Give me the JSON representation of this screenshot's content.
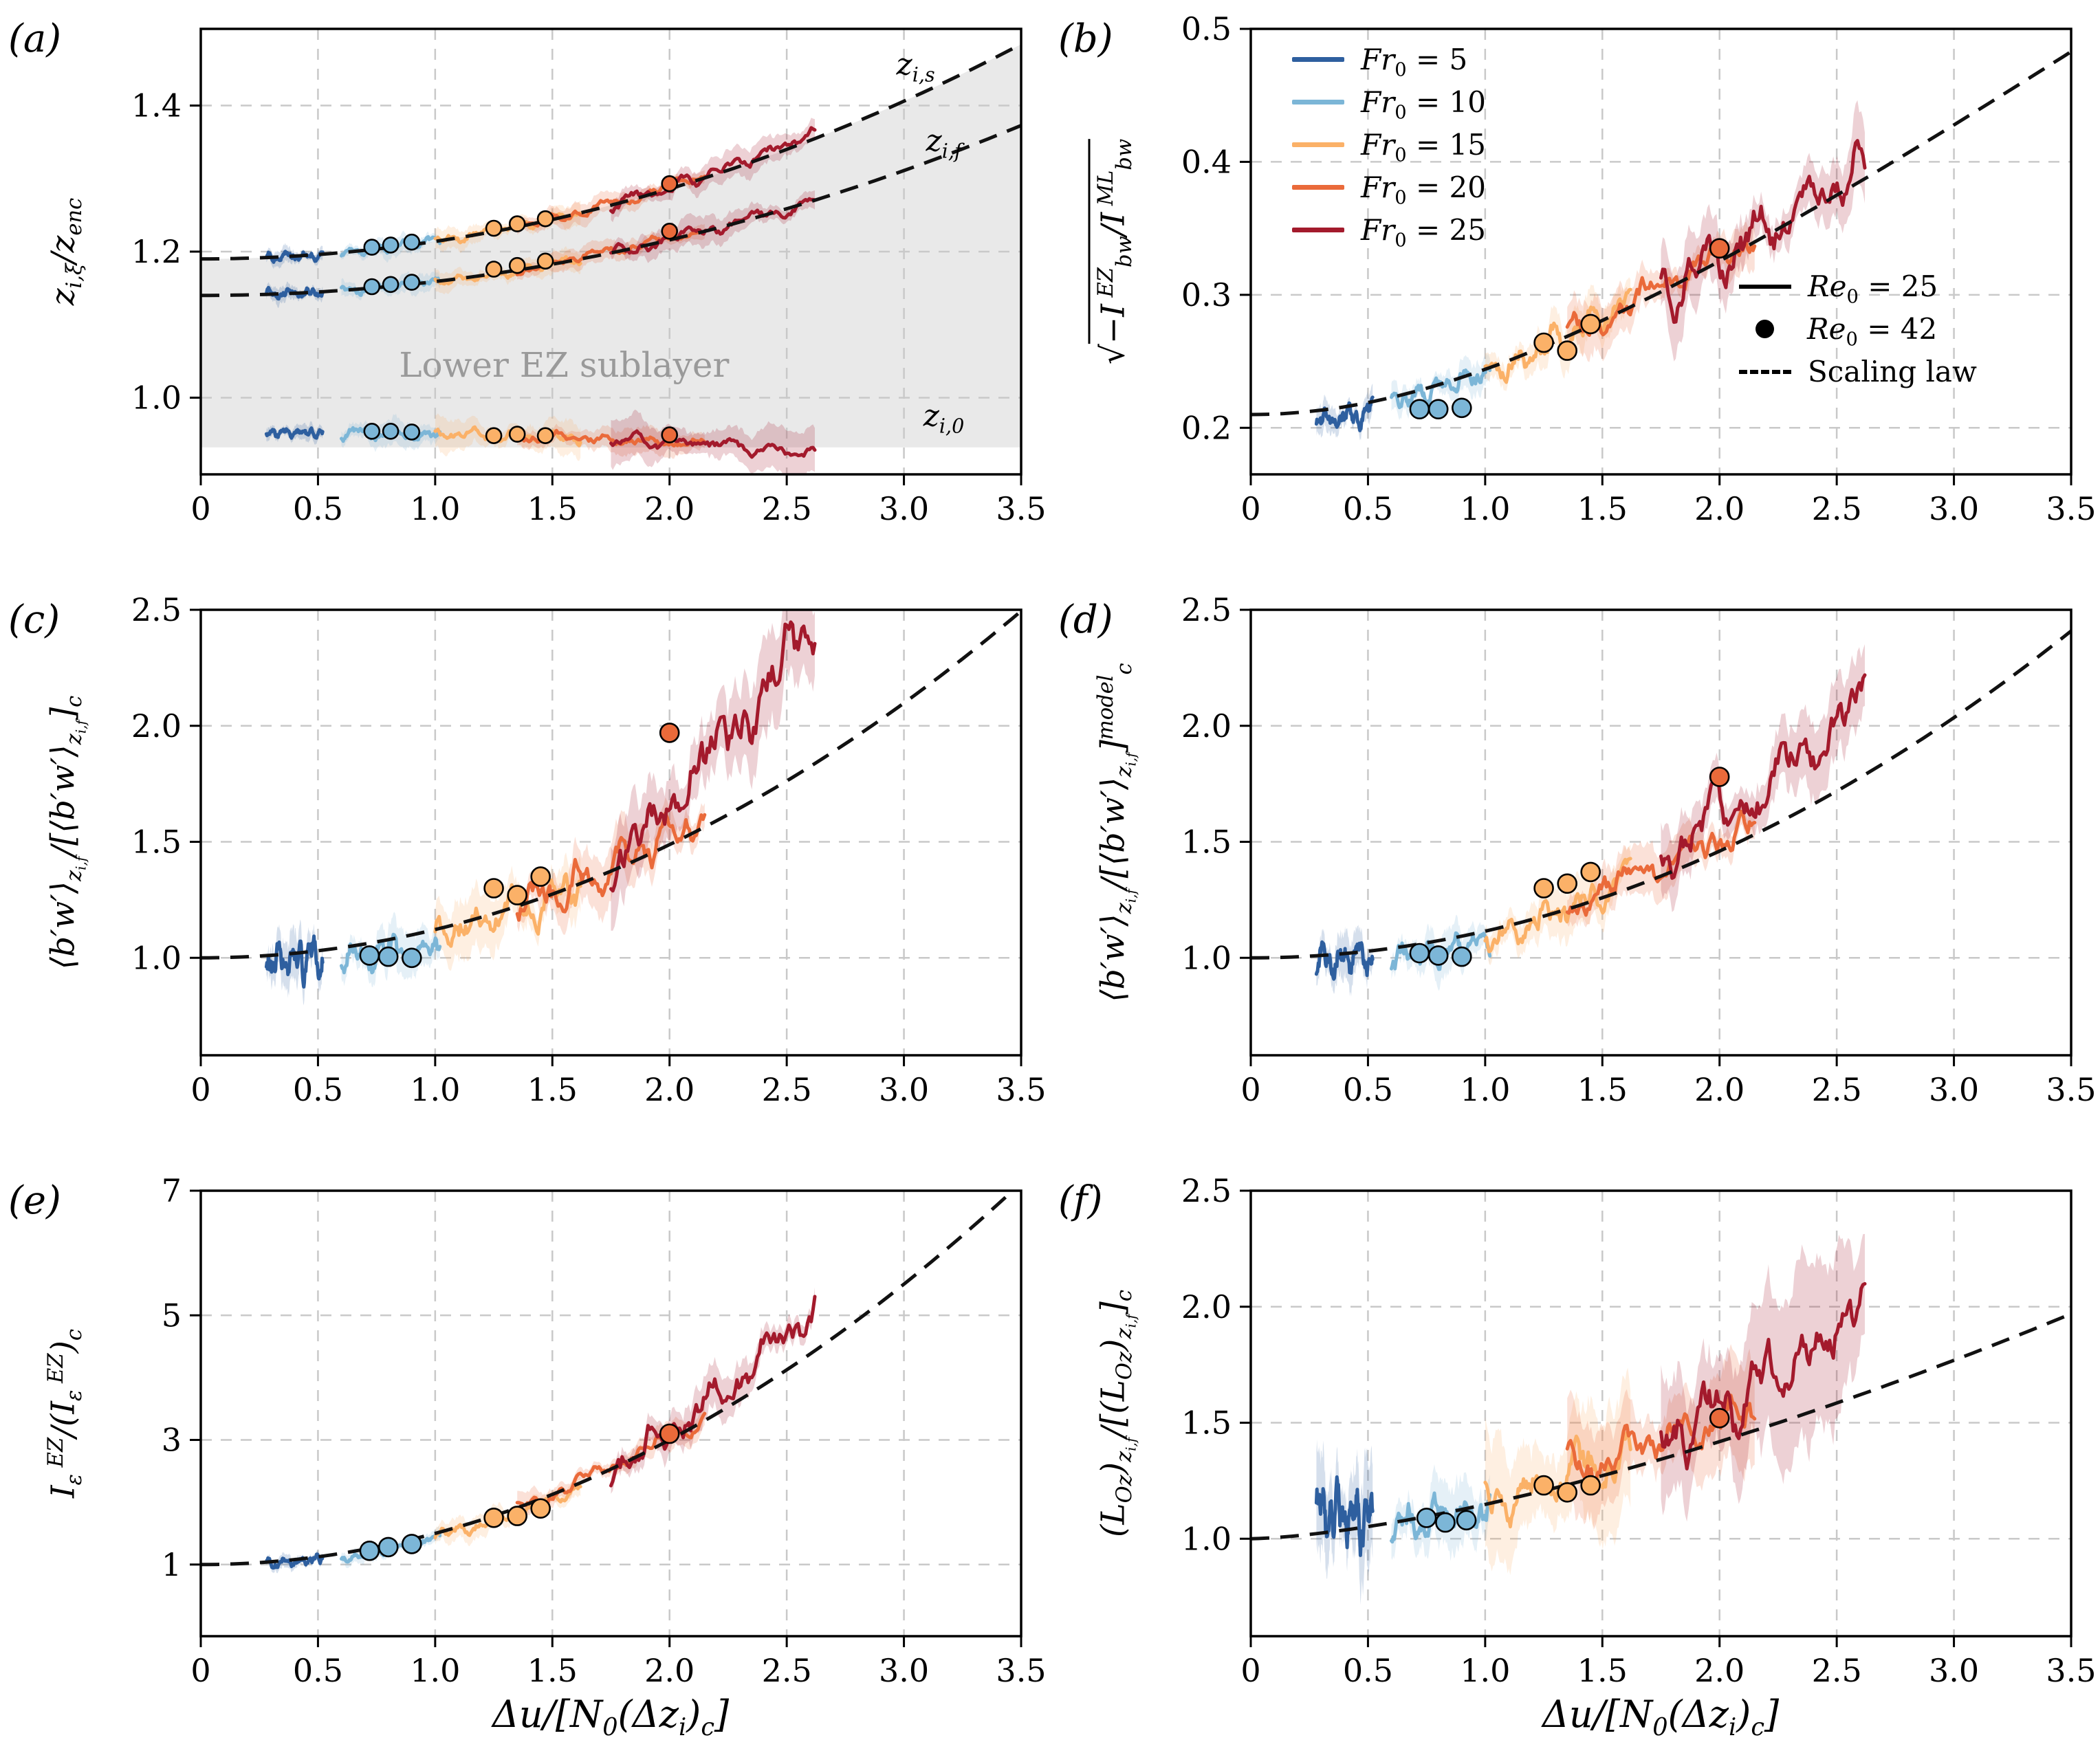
{
  "chart_data": {
    "type": "line",
    "xlabel_html": "Δ<i>u</i>/[<i>N</i><sub>0</sub>(Δ<i>z<sub>i</sub></i>)<sub><i>c</i></sub>]",
    "xlim": [
      0,
      3.5
    ],
    "xticks": {
      "values": [
        0,
        0.5,
        1,
        1.5,
        2,
        2.5,
        3,
        3.5
      ],
      "labels": [
        "0",
        "0.5",
        "1.0",
        "1.5",
        "2.0",
        "2.5",
        "3.0",
        "3.5"
      ]
    },
    "colors": {
      "fr5": "#2e5f9f",
      "fr10": "#7cb6d7",
      "fr15": "#fbb168",
      "fr20": "#ea6a3a",
      "fr25": "#a31a2c",
      "grid": "#c9c9c9",
      "shade": "#e9e9e9",
      "annotation": "#9a9a9a",
      "law": "#111111"
    },
    "legend": {
      "fr": [
        {
          "key": "fr5",
          "label_html": "<i>Fr</i><sub>0</sub> = 5"
        },
        {
          "key": "fr10",
          "label_html": "<i>Fr</i><sub>0</sub> = 10"
        },
        {
          "key": "fr15",
          "label_html": "<i>Fr</i><sub>0</sub> = 15"
        },
        {
          "key": "fr20",
          "label_html": "<i>Fr</i><sub>0</sub> = 20"
        },
        {
          "key": "fr25",
          "label_html": "<i>Fr</i><sub>0</sub> = 25"
        }
      ],
      "style": [
        {
          "type": "line",
          "label_html": "<i>Re</i><sub>0</sub> = 25"
        },
        {
          "type": "dot",
          "label_html": "<i>Re</i><sub>0</sub> = 42"
        },
        {
          "type": "dash",
          "label_html": "Scaling law"
        }
      ]
    },
    "panels": [
      {
        "id": "a",
        "tag": "(a)",
        "ylabel_html": "<i>z</i><sub><i>i</i>,<i>ξ</i></sub>/<i>z<sub>enc</sub></i>",
        "ylim": [
          0.895,
          1.505
        ],
        "yticks": {
          "values": [
            1.0,
            1.2,
            1.4
          ],
          "labels": [
            "1.0",
            "1.2",
            "1.4"
          ]
        },
        "shade": {
          "y_bottom": 0.932,
          "label": "Lower EZ sublayer",
          "label_x": 1.55,
          "label_y": 1.045
        },
        "curves": [
          {
            "name": "zis",
            "dashed": true,
            "law": {
              "c0": 1.19,
              "c1": 0.024
            },
            "label_html": "<i>z</i><sub><i>i</i>,<i>s</i></sub>",
            "label_x": 3.05,
            "label_y": 1.456,
            "series": [
              {
                "fr": "fr5",
                "x0": 0.28,
                "x1": 0.52,
                "off0": 0,
                "off1": 0,
                "wig": 0.004,
                "band": 0.012
              },
              {
                "fr": "fr10",
                "x0": 0.6,
                "x1": 1.02,
                "off0": 0,
                "off1": 0,
                "wig": 0.004,
                "band": 0.014
              },
              {
                "fr": "fr15",
                "x0": 1.0,
                "x1": 1.62,
                "off0": 0,
                "off1": 0,
                "wig": 0.0045,
                "band": 0.016
              },
              {
                "fr": "fr20",
                "x0": 1.35,
                "x1": 2.15,
                "off0": 0,
                "off1": 0.004,
                "wig": 0.0045,
                "band": 0.016
              },
              {
                "fr": "fr25",
                "x0": 1.75,
                "x1": 2.62,
                "off0": 0,
                "off1": 0.006,
                "wig": 0.006,
                "band": 0.022
              }
            ]
          },
          {
            "name": "zif",
            "dashed": true,
            "law": {
              "c0": 1.14,
              "c1": 0.019
            },
            "label_html": "<i>z</i><sub><i>i</i>,<i>f</i></sub>",
            "label_x": 3.17,
            "label_y": 1.352,
            "series": [
              {
                "fr": "fr5",
                "x0": 0.28,
                "x1": 0.52,
                "off0": 0,
                "off1": 0,
                "wig": 0.004,
                "band": 0.012
              },
              {
                "fr": "fr10",
                "x0": 0.6,
                "x1": 1.02,
                "off0": 0,
                "off1": 0,
                "wig": 0.004,
                "band": 0.014
              },
              {
                "fr": "fr15",
                "x0": 1.0,
                "x1": 1.62,
                "off0": 0,
                "off1": 0,
                "wig": 0.0045,
                "band": 0.016
              },
              {
                "fr": "fr20",
                "x0": 1.35,
                "x1": 2.15,
                "off0": 0,
                "off1": 0.004,
                "wig": 0.0045,
                "band": 0.016
              },
              {
                "fr": "fr25",
                "x0": 1.75,
                "x1": 2.62,
                "off0": 0,
                "off1": 0,
                "wig": 0.006,
                "band": 0.022
              }
            ]
          },
          {
            "name": "zi0",
            "dashed": false,
            "law": {
              "c0": 0.952,
              "c1": -0.003
            },
            "label_html": "<i>z</i><sub><i>i</i>,0</sub>",
            "label_x": 3.17,
            "label_y": 0.975,
            "series": [
              {
                "fr": "fr5",
                "x0": 0.28,
                "x1": 0.52,
                "off0": 0,
                "off1": 0,
                "wig": 0.004,
                "band": 0.012
              },
              {
                "fr": "fr10",
                "x0": 0.6,
                "x1": 1.02,
                "off0": 0,
                "off1": 0,
                "wig": 0.005,
                "band": 0.02
              },
              {
                "fr": "fr15",
                "x0": 1.0,
                "x1": 1.62,
                "off0": 0,
                "off1": 0,
                "wig": 0.005,
                "band": 0.025
              },
              {
                "fr": "fr20",
                "x0": 1.35,
                "x1": 2.15,
                "off0": 0,
                "off1": 0,
                "wig": 0.005,
                "band": 0.02
              },
              {
                "fr": "fr25",
                "x0": 1.75,
                "x1": 2.62,
                "off0": 0,
                "off1": -0.006,
                "wig": 0.006,
                "band": 0.035
              }
            ]
          }
        ],
        "markers": [
          [
            0.73,
            1.206,
            "fr10"
          ],
          [
            0.81,
            1.209,
            "fr10"
          ],
          [
            0.9,
            1.213,
            "fr10"
          ],
          [
            1.25,
            1.232,
            "fr15"
          ],
          [
            1.35,
            1.238,
            "fr15"
          ],
          [
            1.47,
            1.245,
            "fr15"
          ],
          [
            2.0,
            1.293,
            "fr20"
          ],
          [
            0.73,
            1.152,
            "fr10"
          ],
          [
            0.81,
            1.155,
            "fr10"
          ],
          [
            0.9,
            1.158,
            "fr10"
          ],
          [
            1.25,
            1.176,
            "fr15"
          ],
          [
            1.35,
            1.181,
            "fr15"
          ],
          [
            1.47,
            1.187,
            "fr15"
          ],
          [
            2.0,
            1.228,
            "fr20"
          ],
          [
            0.73,
            0.954,
            "fr10"
          ],
          [
            0.81,
            0.954,
            "fr10"
          ],
          [
            0.9,
            0.953,
            "fr10"
          ],
          [
            1.25,
            0.948,
            "fr15"
          ],
          [
            1.35,
            0.95,
            "fr15"
          ],
          [
            1.47,
            0.948,
            "fr15"
          ],
          [
            2.0,
            0.949,
            "fr20"
          ]
        ]
      },
      {
        "id": "b",
        "tag": "(b)",
        "ylabel_html": "√<span class=\"ovl\">−<i>I</i><sup> EZ</sup><sub><i>bw</i></sub>/<i>I</i><sup> ML</sup><sub><i>bw</i></sub></span>",
        "ylim": [
          0.165,
          0.5
        ],
        "yticks": {
          "values": [
            0.2,
            0.3,
            0.4,
            0.5
          ],
          "labels": [
            "0.2",
            "0.3",
            "0.4",
            "0.5"
          ]
        },
        "law": {
          "form": "sqrt",
          "c0": 0.21,
          "c1": 0.35
        },
        "series": [
          {
            "fr": "fr5",
            "x0": 0.28,
            "x1": 0.52,
            "off0": -0.008,
            "off1": -0.008,
            "wig": 0.005,
            "band": 0.012
          },
          {
            "fr": "fr10",
            "x0": 0.6,
            "x1": 1.02,
            "off0": -0.004,
            "off1": -0.002,
            "wig": 0.005,
            "band": 0.013
          },
          {
            "fr": "fr15",
            "x0": 1.0,
            "x1": 1.62,
            "off0": -0.004,
            "off1": 0.004,
            "wig": 0.008,
            "band": 0.018
          },
          {
            "fr": "fr20",
            "x0": 1.35,
            "x1": 2.15,
            "off0": 0,
            "off1": 0.005,
            "wig": 0.008,
            "band": 0.02
          },
          {
            "fr": "fr25",
            "x0": 1.75,
            "x1": 2.62,
            "off0": 0,
            "off1": 0.012,
            "wig": 0.013,
            "band": 0.028
          }
        ],
        "markers": [
          [
            0.72,
            0.214,
            "fr10"
          ],
          [
            0.8,
            0.214,
            "fr10"
          ],
          [
            0.9,
            0.215,
            "fr10"
          ],
          [
            1.25,
            0.264,
            "fr15"
          ],
          [
            1.35,
            0.258,
            "fr15"
          ],
          [
            1.45,
            0.278,
            "fr15"
          ],
          [
            2.0,
            0.335,
            "fr20"
          ]
        ]
      },
      {
        "id": "c",
        "tag": "(c)",
        "ylabel_html": "⟨<i>b′w′</i>⟩<sub><i>z<sub>i,f</sub></i></sub>/[⟨<i>b′w′</i>⟩<sub><i>z<sub>i,f</sub></i></sub>]<sub><i>c</i></sub>",
        "ylim": [
          0.58,
          2.5
        ],
        "yticks": {
          "values": [
            1.0,
            1.5,
            2.0,
            2.5
          ],
          "labels": [
            "1.0",
            "1.5",
            "2.0",
            "2.5"
          ]
        },
        "law": {
          "c0": 1,
          "c1": 0.122
        },
        "series": [
          {
            "fr": "fr5",
            "x0": 0.28,
            "x1": 0.52,
            "off0": -0.02,
            "off1": -0.02,
            "wig": 0.05,
            "band": 0.12
          },
          {
            "fr": "fr10",
            "x0": 0.6,
            "x1": 1.02,
            "off0": -0.05,
            "off1": -0.07,
            "wig": 0.045,
            "band": 0.11
          },
          {
            "fr": "fr15",
            "x0": 1.0,
            "x1": 1.62,
            "off0": -0.02,
            "off1": 0,
            "wig": 0.06,
            "band": 0.14
          },
          {
            "fr": "fr20",
            "x0": 1.35,
            "x1": 2.15,
            "off0": 0,
            "off1": 0.05,
            "wig": 0.06,
            "band": 0.13
          },
          {
            "fr": "fr25",
            "x0": 1.75,
            "x1": 2.62,
            "off0": 0,
            "off1": 0.6,
            "wig": 0.1,
            "band": 0.22
          }
        ],
        "markers": [
          [
            0.72,
            1.01,
            "fr10"
          ],
          [
            0.8,
            1.005,
            "fr10"
          ],
          [
            0.9,
            1.0,
            "fr10"
          ],
          [
            1.25,
            1.3,
            "fr15"
          ],
          [
            1.35,
            1.27,
            "fr15"
          ],
          [
            1.45,
            1.35,
            "fr15"
          ],
          [
            2.0,
            1.97,
            "fr20"
          ]
        ]
      },
      {
        "id": "d",
        "tag": "(d)",
        "ylabel_html": "⟨<i>b′w′</i>⟩<sub><i>z<sub>i,f</sub></i></sub>/[⟨<i>b′w′</i>⟩<sub><i>z<sub>i,f</sub></i></sub>]<sup><i>model</i></sup><sub><i>c</i></sub>",
        "ylim": [
          0.58,
          2.5
        ],
        "yticks": {
          "values": [
            1.0,
            1.5,
            2.0,
            2.5
          ],
          "labels": [
            "1.0",
            "1.5",
            "2.0",
            "2.5"
          ]
        },
        "law": {
          "c0": 1,
          "c1": 0.115
        },
        "series": [
          {
            "fr": "fr5",
            "x0": 0.28,
            "x1": 0.52,
            "off0": -0.02,
            "off1": -0.02,
            "wig": 0.045,
            "band": 0.11
          },
          {
            "fr": "fr10",
            "x0": 0.6,
            "x1": 1.02,
            "off0": -0.04,
            "off1": -0.06,
            "wig": 0.04,
            "band": 0.1
          },
          {
            "fr": "fr15",
            "x0": 1.0,
            "x1": 1.62,
            "off0": -0.02,
            "off1": 0.02,
            "wig": 0.05,
            "band": 0.12
          },
          {
            "fr": "fr20",
            "x0": 1.35,
            "x1": 2.15,
            "off0": 0.02,
            "off1": 0.06,
            "wig": 0.05,
            "band": 0.12
          },
          {
            "fr": "fr25",
            "x0": 1.75,
            "x1": 2.62,
            "off0": 0.08,
            "off1": 0.3,
            "wig": 0.08,
            "band": 0.18
          }
        ],
        "markers": [
          [
            0.72,
            1.02,
            "fr10"
          ],
          [
            0.8,
            1.01,
            "fr10"
          ],
          [
            0.9,
            1.005,
            "fr10"
          ],
          [
            1.25,
            1.3,
            "fr15"
          ],
          [
            1.35,
            1.32,
            "fr15"
          ],
          [
            1.45,
            1.37,
            "fr15"
          ],
          [
            2.0,
            1.78,
            "fr20"
          ]
        ]
      },
      {
        "id": "e",
        "tag": "(e)",
        "ylabel_html": "<i>I</i><sub><i>ε</i></sub><sup> EZ</sup>/(<i>I</i><sub><i>ε</i></sub><sup> EZ</sup>)<sub><i>c</i></sub>",
        "ylim": [
          -0.15,
          7.0
        ],
        "yticks": {
          "values": [
            1,
            3,
            5,
            7
          ],
          "labels": [
            "1",
            "3",
            "5",
            "7"
          ]
        },
        "law": {
          "c0": 1,
          "c1": 0.5
        },
        "series": [
          {
            "fr": "fr5",
            "x0": 0.28,
            "x1": 0.52,
            "off0": -0.03,
            "off1": -0.03,
            "wig": 0.05,
            "band": 0.12
          },
          {
            "fr": "fr10",
            "x0": 0.6,
            "x1": 1.02,
            "off0": -0.08,
            "off1": -0.1,
            "wig": 0.05,
            "band": 0.12
          },
          {
            "fr": "fr15",
            "x0": 1.0,
            "x1": 1.62,
            "off0": -0.05,
            "off1": -0.05,
            "wig": 0.07,
            "band": 0.2
          },
          {
            "fr": "fr20",
            "x0": 1.35,
            "x1": 2.15,
            "off0": 0,
            "off1": 0.05,
            "wig": 0.08,
            "band": 0.22
          },
          {
            "fr": "fr25",
            "x0": 1.75,
            "x1": 2.62,
            "off0": 0,
            "off1": 0.65,
            "wig": 0.22,
            "band": 0.35
          }
        ],
        "markers": [
          [
            0.72,
            1.22,
            "fr10"
          ],
          [
            0.8,
            1.28,
            "fr10"
          ],
          [
            0.9,
            1.33,
            "fr10"
          ],
          [
            1.25,
            1.75,
            "fr15"
          ],
          [
            1.35,
            1.78,
            "fr15"
          ],
          [
            1.45,
            1.9,
            "fr15"
          ],
          [
            2.0,
            3.1,
            "fr20"
          ]
        ]
      },
      {
        "id": "f",
        "tag": "(f)",
        "ylabel_html": "(<i>L</i><sub><i>Oz</i></sub>)<sub><i>z<sub>i,f</sub></i></sub>/[(<i>L</i><sub><i>Oz</i></sub>)<sub><i>z<sub>i,f</sub></i></sub>]<sub><i>c</i></sub>",
        "ylim": [
          0.58,
          2.5
        ],
        "yticks": {
          "values": [
            1.0,
            1.5,
            2.0,
            2.5
          ],
          "labels": [
            "1.0",
            "1.5",
            "2.0",
            "2.5"
          ]
        },
        "law": {
          "c0": 1,
          "c1": 0.148,
          "p": 1.5
        },
        "series": [
          {
            "fr": "fr5",
            "x0": 0.28,
            "x1": 0.52,
            "off0": 0.08,
            "off1": 0.05,
            "wig": 0.09,
            "band": 0.24
          },
          {
            "fr": "fr10",
            "x0": 0.6,
            "x1": 1.02,
            "off0": -0.02,
            "off1": -0.03,
            "wig": 0.05,
            "band": 0.15
          },
          {
            "fr": "fr15",
            "x0": 1.0,
            "x1": 1.62,
            "off0": 0.02,
            "off1": 0.03,
            "wig": 0.07,
            "band": 0.3
          },
          {
            "fr": "fr20",
            "x0": 1.35,
            "x1": 2.15,
            "off0": 0.05,
            "off1": 0.08,
            "wig": 0.06,
            "band": 0.24
          },
          {
            "fr": "fr25",
            "x0": 1.75,
            "x1": 2.62,
            "off0": 0.05,
            "off1": 0.38,
            "wig": 0.1,
            "band": 0.42
          }
        ],
        "markers": [
          [
            0.75,
            1.09,
            "fr10"
          ],
          [
            0.83,
            1.07,
            "fr10"
          ],
          [
            0.92,
            1.08,
            "fr10"
          ],
          [
            1.25,
            1.23,
            "fr15"
          ],
          [
            1.35,
            1.2,
            "fr15"
          ],
          [
            1.45,
            1.23,
            "fr15"
          ],
          [
            2.0,
            1.52,
            "fr20"
          ]
        ]
      }
    ]
  }
}
